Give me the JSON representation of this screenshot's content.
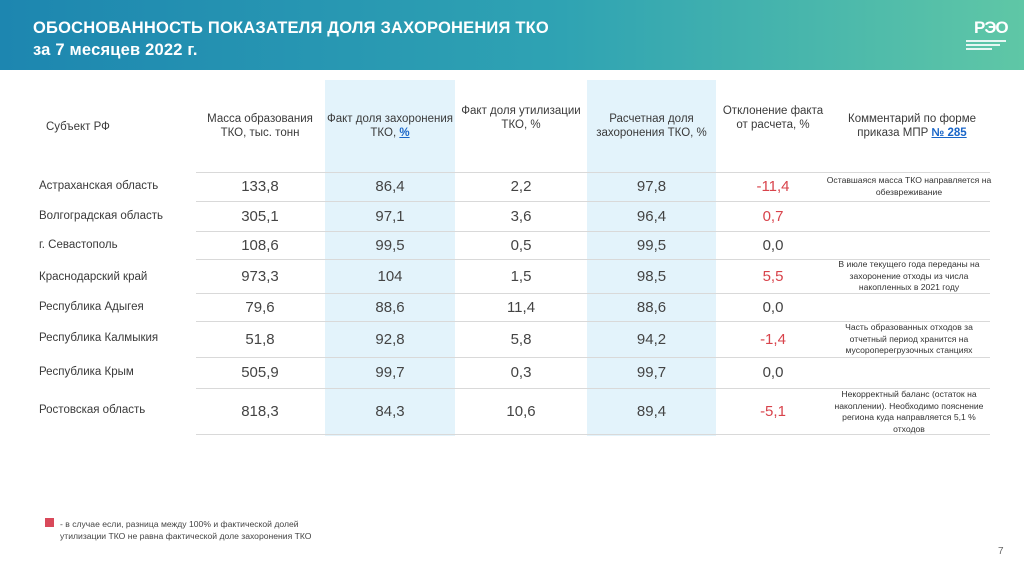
{
  "header": {
    "title_line1": "ОБОСНОВАННОСТЬ ПОКАЗАТЕЛЯ ДОЛЯ ЗАХОРОНЕНИЯ ТКО",
    "title_line2": "за 7 месяцев 2022 г.",
    "logo_text": "РЭО"
  },
  "table": {
    "headers": {
      "subject": "Субъект РФ",
      "mass": "Масса образования ТКО, тыс. тонн",
      "burial_fact": "Факт доля захоронения ТКО,",
      "burial_fact_link": "%",
      "utilization_fact": "Факт доля утилизации ТКО, %",
      "burial_calc": "Расчетная доля захоронения ТКО, %",
      "deviation": "Отклонение факта от расчета, %",
      "comment": "Комментарий по форме приказа МПР",
      "comment_link": "№ 285"
    },
    "rows": [
      {
        "region": "Астраханская область",
        "mass": "133,8",
        "burial": "86,4",
        "util": "2,2",
        "calc": "97,8",
        "dev": "-11,4",
        "comment": "Оставшаяся масса ТКО направляется на обезвреживание"
      },
      {
        "region": "Волгоградская область",
        "mass": "305,1",
        "burial": "97,1",
        "util": "3,6",
        "calc": "96,4",
        "dev": "0,7",
        "comment": ""
      },
      {
        "region": "г. Севастополь",
        "mass": "108,6",
        "burial": "99,5",
        "util": "0,5",
        "calc": "99,5",
        "dev": "0,0",
        "comment": ""
      },
      {
        "region": "Краснодарский край",
        "mass": "973,3",
        "burial": "104",
        "util": "1,5",
        "calc": "98,5",
        "dev": "5,5",
        "comment": "В июле текущего года переданы на захоронение отходы из числа накопленных в 2021 году"
      },
      {
        "region": "Республика Адыгея",
        "mass": "79,6",
        "burial": "88,6",
        "util": "11,4",
        "calc": "88,6",
        "dev": "0,0",
        "comment": ""
      },
      {
        "region": "Республика Калмыкия",
        "mass": "51,8",
        "burial": "92,8",
        "util": "5,8",
        "calc": "94,2",
        "dev": "-1,4",
        "comment": "Часть образованных отходов за отчетный период хранится на мусороперегрузочных станциях"
      },
      {
        "region": "Республика Крым",
        "mass": "505,9",
        "burial": "99,7",
        "util": "0,3",
        "calc": "99,7",
        "dev": "0,0",
        "comment": ""
      },
      {
        "region": "Ростовская область",
        "mass": "818,3",
        "burial": "84,3",
        "util": "10,6",
        "calc": "89,4",
        "dev": "-5,1",
        "comment": "Некорректный баланс (остаток на накоплении). Необходимо пояснение региона куда направляется 5,1 % отходов"
      }
    ]
  },
  "legend": {
    "color": "#d9495a",
    "text_line1": "- в случае если, разница между 100% и фактической долей",
    "text_line2": "утилизации ТКО не равна фактической доле захоронения ТКО"
  },
  "page_number": "7",
  "colors": {
    "accent_red": "#d8434b",
    "highlight": "#e3f3fb",
    "link": "#1a66c8"
  }
}
